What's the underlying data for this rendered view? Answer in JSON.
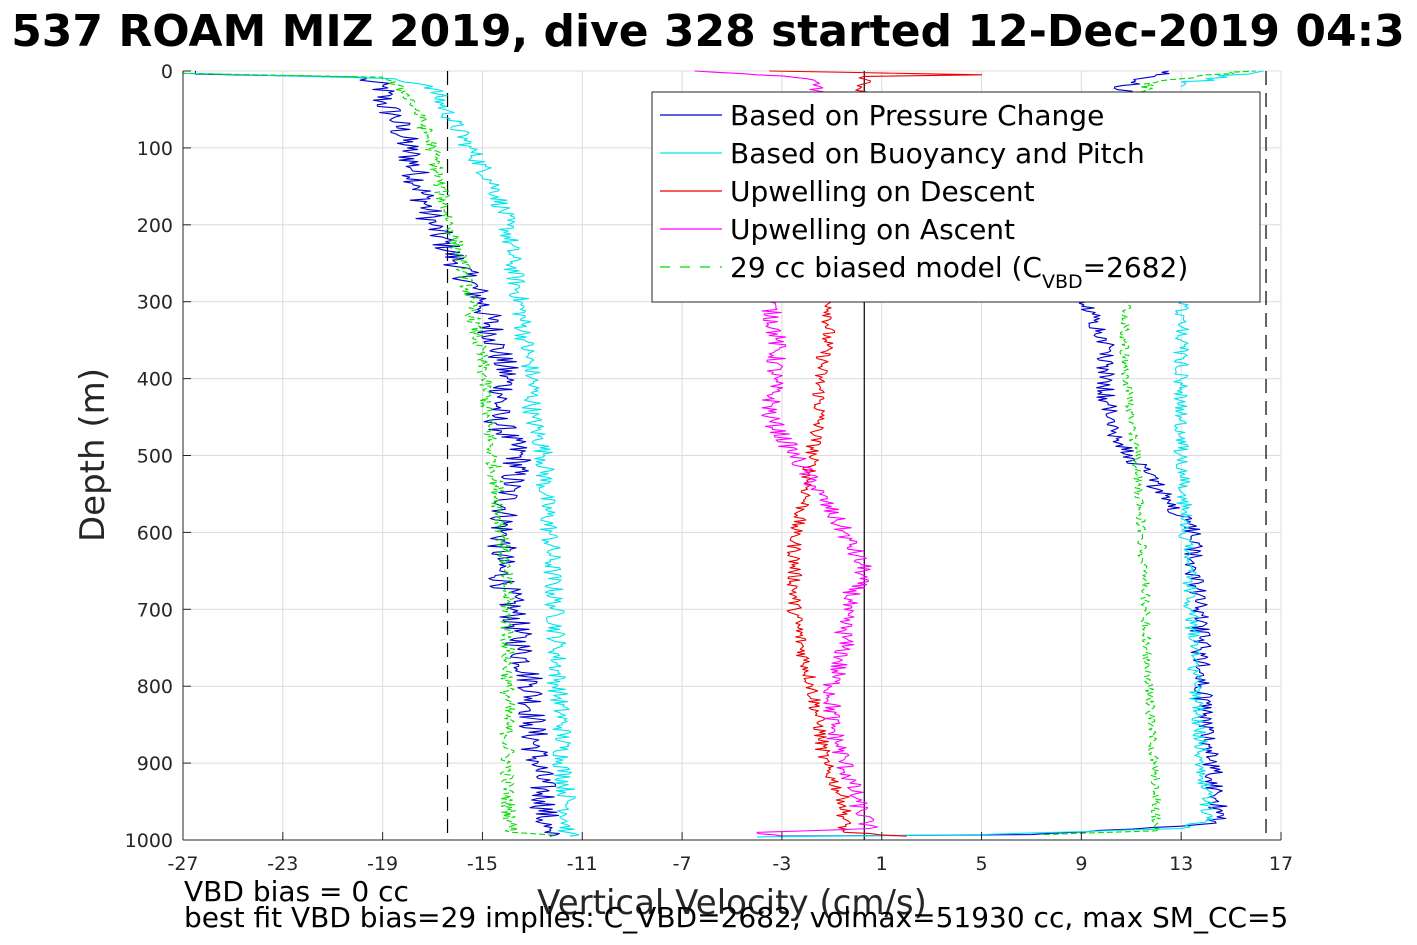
{
  "figure": {
    "title": "537 ROAM MIZ 2019, dive 328 started 12-Dec-2019 04:3",
    "notes": [
      "VBD bias = 0 cc",
      "best fit VBD bias=29 implies: C_VBD=2682, volmax=51930 cc, max SM_CC=5"
    ]
  },
  "chart_data": {
    "type": "line",
    "xlabel": "Vertical Velocity (cm/s)",
    "ylabel": "Depth (m)",
    "xlim": [
      -27,
      17
    ],
    "ylim": [
      0,
      1000
    ],
    "y_reversed": true,
    "grid": true,
    "xticks": [
      "-27",
      "-23",
      "-19",
      "-15",
      "-11",
      "-7",
      "-3",
      "1",
      "5",
      "9",
      "13",
      "17"
    ],
    "yticks": [
      "0",
      "100",
      "200",
      "300",
      "400",
      "500",
      "600",
      "700",
      "800",
      "900",
      "1000"
    ],
    "reference_lines": {
      "dashed_x": [
        -16.4,
        16.4
      ],
      "solid_x": [
        0.3
      ]
    },
    "legend": {
      "position": "top-right",
      "entries": [
        {
          "label": "Based on Pressure Change",
          "color": "#0000cc",
          "dash": "solid"
        },
        {
          "label": "Based on Buoyancy and Pitch",
          "color": "#00e5ee",
          "dash": "solid"
        },
        {
          "label": "Upwelling on Descent",
          "color": "#ee0000",
          "dash": "solid"
        },
        {
          "label": "Upwelling on Ascent",
          "color": "#ff00ff",
          "dash": "solid"
        },
        {
          "label": "29 cc biased model (C",
          "sub": "VBD",
          "after": "=2682)",
          "color": "#00dd00",
          "dash": "dashed"
        }
      ]
    },
    "series": [
      {
        "name": "Based on Pressure Change (descent)",
        "color": "#0000cc",
        "dash": "solid",
        "jitter": 0.6,
        "points": [
          [
            -26.5,
            0
          ],
          [
            -26.5,
            4
          ],
          [
            -20,
            8
          ],
          [
            -19,
            20
          ],
          [
            -19,
            40
          ],
          [
            -18.5,
            60
          ],
          [
            -18,
            100
          ],
          [
            -17.5,
            150
          ],
          [
            -17,
            200
          ],
          [
            -16,
            250
          ],
          [
            -15,
            300
          ],
          [
            -14.5,
            350
          ],
          [
            -14,
            400
          ],
          [
            -14.5,
            450
          ],
          [
            -13.5,
            500
          ],
          [
            -14,
            550
          ],
          [
            -14.2,
            600
          ],
          [
            -14.3,
            650
          ],
          [
            -13.8,
            700
          ],
          [
            -13.5,
            750
          ],
          [
            -13,
            800
          ],
          [
            -13,
            850
          ],
          [
            -12.8,
            900
          ],
          [
            -12.5,
            950
          ],
          [
            -12.5,
            990
          ],
          [
            -12.3,
            995
          ]
        ]
      },
      {
        "name": "Based on Pressure Change (ascent)",
        "color": "#0000cc",
        "dash": "solid",
        "jitter": 0.4,
        "points": [
          [
            -3,
            995
          ],
          [
            7,
            993
          ],
          [
            13,
            982
          ],
          [
            14.4,
            978
          ],
          [
            14.5,
            950
          ],
          [
            14.2,
            900
          ],
          [
            14,
            850
          ],
          [
            13.8,
            800
          ],
          [
            13.8,
            750
          ],
          [
            13.7,
            700
          ],
          [
            13.5,
            650
          ],
          [
            13.5,
            600
          ],
          [
            12.5,
            560
          ],
          [
            11.5,
            520
          ],
          [
            10.5,
            480
          ],
          [
            10,
            430
          ],
          [
            10,
            400
          ],
          [
            10,
            350
          ],
          [
            9.5,
            320
          ],
          [
            9.2,
            300
          ]
        ]
      },
      {
        "name": "Based on Pressure Change (ascent top)",
        "color": "#0000cc",
        "dash": "solid",
        "jitter": 0.5,
        "points": [
          [
            10.5,
            30
          ],
          [
            11,
            15
          ],
          [
            12,
            5
          ],
          [
            12.5,
            0
          ]
        ]
      },
      {
        "name": "Based on Buoyancy and Pitch (descent)",
        "color": "#00e5ee",
        "dash": "solid",
        "jitter": 0.4,
        "points": [
          [
            -27,
            0
          ],
          [
            -27,
            3
          ],
          [
            -18.5,
            10
          ],
          [
            -17,
            20
          ],
          [
            -16.5,
            50
          ],
          [
            -15.5,
            100
          ],
          [
            -14.5,
            150
          ],
          [
            -14,
            200
          ],
          [
            -13.8,
            250
          ],
          [
            -13.5,
            300
          ],
          [
            -13.3,
            350
          ],
          [
            -13,
            400
          ],
          [
            -13,
            450
          ],
          [
            -12.5,
            500
          ],
          [
            -12.5,
            550
          ],
          [
            -12.3,
            600
          ],
          [
            -12.2,
            650
          ],
          [
            -12.1,
            700
          ],
          [
            -12,
            750
          ],
          [
            -12,
            800
          ],
          [
            -11.8,
            850
          ],
          [
            -11.8,
            900
          ],
          [
            -11.6,
            950
          ],
          [
            -11.6,
            990
          ],
          [
            -11.5,
            995
          ]
        ]
      },
      {
        "name": "Based on Buoyancy and Pitch (ascent)",
        "color": "#00e5ee",
        "dash": "solid",
        "jitter": 0.3,
        "points": [
          [
            -4,
            996
          ],
          [
            5,
            993
          ],
          [
            13,
            985
          ],
          [
            14,
            975
          ],
          [
            14,
            950
          ],
          [
            13.8,
            900
          ],
          [
            13.7,
            850
          ],
          [
            13.6,
            800
          ],
          [
            13.5,
            750
          ],
          [
            13.4,
            700
          ],
          [
            13.3,
            650
          ],
          [
            13.2,
            600
          ],
          [
            13.1,
            550
          ],
          [
            13,
            500
          ],
          [
            13,
            450
          ],
          [
            13,
            400
          ],
          [
            13,
            350
          ],
          [
            13,
            300
          ]
        ]
      },
      {
        "name": "Based on Buoyancy and Pitch (ascent top)",
        "color": "#00e5ee",
        "dash": "solid",
        "jitter": 0.6,
        "points": [
          [
            13,
            20
          ],
          [
            14,
            10
          ],
          [
            16,
            2
          ],
          [
            16.3,
            0
          ]
        ]
      },
      {
        "name": "Upwelling on Descent",
        "color": "#ee0000",
        "dash": "solid",
        "jitter": 0.3,
        "points": [
          [
            -3.5,
            0
          ],
          [
            0,
            2
          ],
          [
            5,
            5
          ],
          [
            0.3,
            7
          ],
          [
            -1,
            300
          ],
          [
            -1.2,
            350
          ],
          [
            -1.5,
            400
          ],
          [
            -1.5,
            450
          ],
          [
            -1.8,
            500
          ],
          [
            -2,
            550
          ],
          [
            -2.5,
            600
          ],
          [
            -2.5,
            650
          ],
          [
            -2.5,
            700
          ],
          [
            -2.2,
            750
          ],
          [
            -1.8,
            800
          ],
          [
            -1.5,
            850
          ],
          [
            -1.3,
            900
          ],
          [
            -0.5,
            950
          ],
          [
            -0.5,
            990
          ],
          [
            2,
            995
          ]
        ]
      },
      {
        "name": "Upwelling on Ascent",
        "color": "#ff00ff",
        "dash": "solid",
        "jitter": 0.4,
        "points": [
          [
            -6.5,
            0
          ],
          [
            -4,
            5
          ],
          [
            -2,
            10
          ],
          [
            -1.5,
            20
          ],
          [
            -3.5,
            300
          ],
          [
            -3.2,
            350
          ],
          [
            -3.3,
            400
          ],
          [
            -3.5,
            450
          ],
          [
            -2.5,
            500
          ],
          [
            -1.5,
            550
          ],
          [
            -0.5,
            600
          ],
          [
            0.3,
            650
          ],
          [
            -0.5,
            700
          ],
          [
            -0.5,
            750
          ],
          [
            -1,
            800
          ],
          [
            -1,
            850
          ],
          [
            -0.5,
            900
          ],
          [
            0,
            950
          ],
          [
            0.5,
            985
          ],
          [
            -4,
            990
          ],
          [
            -3,
            995
          ]
        ]
      },
      {
        "name": "29 cc biased model (descent)",
        "color": "#00dd00",
        "dash": "dashed",
        "jitter": 0.3,
        "points": [
          [
            -27,
            0
          ],
          [
            -27,
            3
          ],
          [
            -19,
            8
          ],
          [
            -18,
            30
          ],
          [
            -17.5,
            60
          ],
          [
            -17,
            100
          ],
          [
            -16.7,
            150
          ],
          [
            -16.3,
            200
          ],
          [
            -15.8,
            250
          ],
          [
            -15.5,
            300
          ],
          [
            -15.2,
            350
          ],
          [
            -14.9,
            400
          ],
          [
            -14.8,
            450
          ],
          [
            -14.6,
            500
          ],
          [
            -14.4,
            550
          ],
          [
            -14.2,
            600
          ],
          [
            -14.1,
            650
          ],
          [
            -14,
            700
          ],
          [
            -14,
            750
          ],
          [
            -14,
            800
          ],
          [
            -14,
            850
          ],
          [
            -14,
            900
          ],
          [
            -14,
            950
          ],
          [
            -13.8,
            990
          ],
          [
            -12,
            994
          ]
        ]
      },
      {
        "name": "29 cc biased model (ascent)",
        "color": "#00dd00",
        "dash": "dashed",
        "jitter": 0.2,
        "points": [
          [
            7.5,
            993
          ],
          [
            12,
            988
          ],
          [
            12,
            950
          ],
          [
            11.9,
            900
          ],
          [
            11.8,
            850
          ],
          [
            11.7,
            800
          ],
          [
            11.6,
            750
          ],
          [
            11.6,
            700
          ],
          [
            11.5,
            650
          ],
          [
            11.4,
            600
          ],
          [
            11.3,
            550
          ],
          [
            11.2,
            500
          ],
          [
            11,
            450
          ],
          [
            10.8,
            400
          ],
          [
            10.7,
            350
          ],
          [
            10.8,
            300
          ]
        ]
      },
      {
        "name": "29 cc biased model (ascent top)",
        "color": "#00dd00",
        "dash": "dashed",
        "jitter": 0.5,
        "points": [
          [
            11,
            30
          ],
          [
            12,
            15
          ],
          [
            14,
            5
          ],
          [
            16,
            0
          ]
        ]
      }
    ]
  }
}
